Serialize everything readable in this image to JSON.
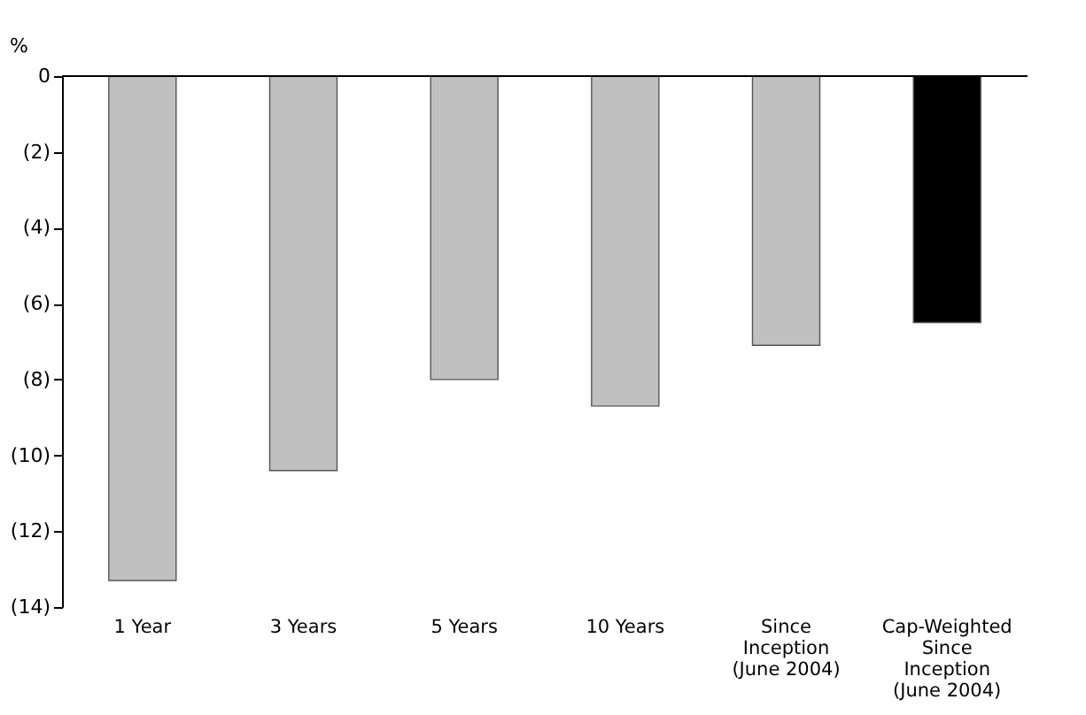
{
  "chart_data": {
    "type": "bar",
    "ylabel": "%",
    "categories": [
      "1 Year",
      "3 Years",
      "5 Years",
      "10 Years",
      "Since\nInception\n(June 2004)",
      "Cap-Weighted\nSince\nInception\n(June 2004)"
    ],
    "values": [
      -13.3,
      -10.4,
      -8.0,
      -8.7,
      -7.1,
      -6.5
    ],
    "colors": [
      "#c0c0c0",
      "#c0c0c0",
      "#c0c0c0",
      "#c0c0c0",
      "#c0c0c0",
      "#000000"
    ],
    "ylim": [
      -14,
      0
    ],
    "yticks": [
      0,
      {
        "value": -2,
        "label": "(2)"
      },
      {
        "value": -4,
        "label": "(4)"
      },
      {
        "value": -6,
        "label": "(6)"
      },
      {
        "value": -8,
        "label": "(8)"
      },
      {
        "value": -10,
        "label": "(10)"
      },
      {
        "value": -12,
        "label": "(12)"
      },
      {
        "value": -14,
        "label": "(14)"
      }
    ],
    "grid": false
  }
}
